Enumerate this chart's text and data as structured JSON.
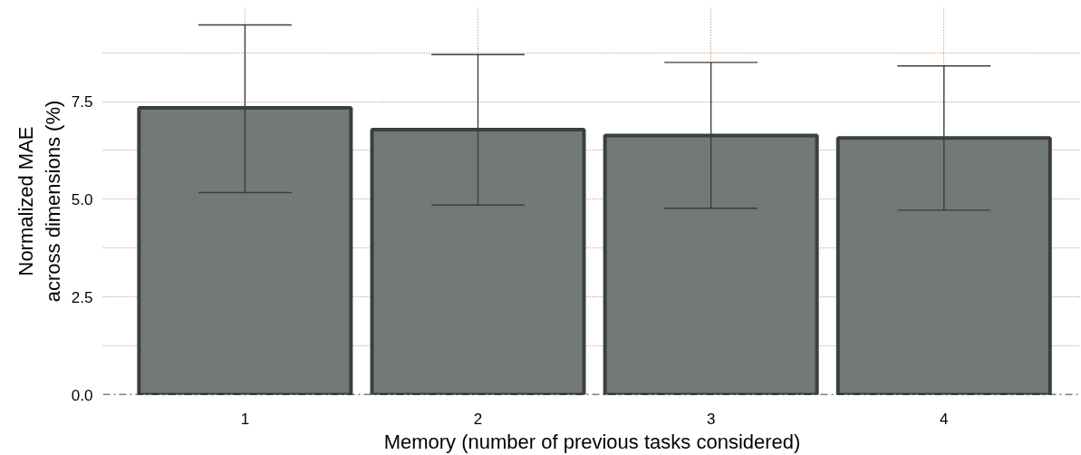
{
  "chart_data": {
    "type": "bar",
    "xlabel": "Memory (number of previous tasks considered)",
    "ylabel": "Normalized MAE\nacross dimensions (%)",
    "categories": [
      "1",
      "2",
      "3",
      "4"
    ],
    "values": [
      7.34,
      6.78,
      6.63,
      6.57
    ],
    "errors": [
      [
        5.17,
        9.46
      ],
      [
        4.85,
        8.7
      ],
      [
        4.77,
        8.5
      ],
      [
        4.72,
        8.41
      ]
    ],
    "color": "#737975",
    "ylim": [
      0,
      9.9
    ],
    "yticks": [
      {
        "value": 0,
        "label": "0.0"
      },
      {
        "value": 2.5,
        "label": "2.5"
      },
      {
        "value": 5,
        "label": "5.0"
      },
      {
        "value": 7.5,
        "label": "7.5"
      }
    ],
    "ref_lines": [
      {
        "axis": "y",
        "value": 0,
        "label": null,
        "color": "#000000",
        "line_style": "dashed"
      }
    ],
    "grid": true
  }
}
